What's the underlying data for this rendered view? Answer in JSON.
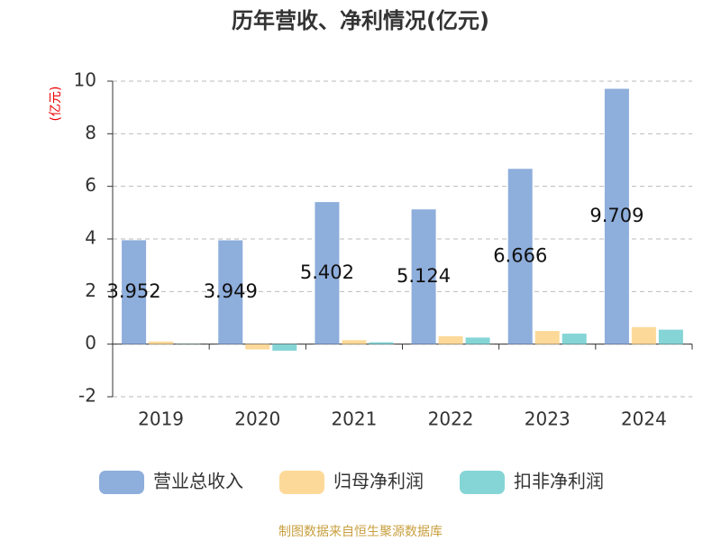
{
  "chart_data": {
    "type": "bar",
    "title": "历年营收、净利情况(亿元)",
    "y_label": "(亿元)",
    "categories": [
      "2019",
      "2020",
      "2021",
      "2022",
      "2023",
      "2024"
    ],
    "series": [
      {
        "name": "营业总收入",
        "color": "#8eaedc",
        "values": [
          3.952,
          3.949,
          5.402,
          5.124,
          6.666,
          9.709
        ],
        "show_labels": true
      },
      {
        "name": "归母净利润",
        "color": "#fdd999",
        "values": [
          0.1,
          -0.2,
          0.15,
          0.3,
          0.5,
          0.65
        ]
      },
      {
        "name": "扣非净利润",
        "color": "#85d5d6",
        "values": [
          0.01,
          -0.25,
          0.07,
          0.25,
          0.4,
          0.55
        ]
      }
    ],
    "ylim": [
      -2,
      10
    ],
    "yticks": [
      -2,
      0,
      2,
      4,
      6,
      8,
      10
    ],
    "grid": true,
    "legend": "bottom",
    "source": "制图数据来自恒生聚源数据库"
  }
}
